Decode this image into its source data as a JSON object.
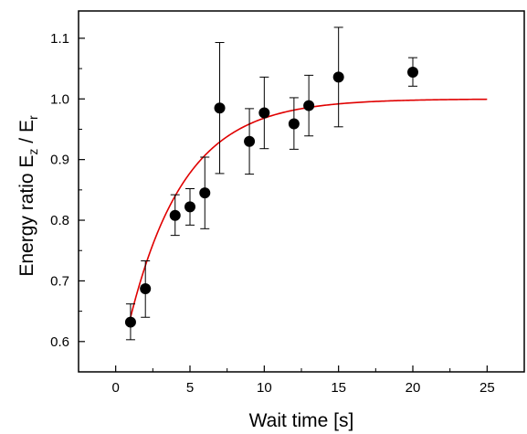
{
  "chart_data": {
    "type": "scatter",
    "xlabel": "Wait time [s]",
    "ylabel": {
      "main": "Energy ratio E",
      "sub1": "z",
      "mid": " / E",
      "sub2": "r"
    },
    "xlim": [
      -2.5,
      27.5
    ],
    "ylim": [
      0.55,
      1.145
    ],
    "xticks": [
      0,
      5,
      10,
      15,
      20,
      25
    ],
    "yticks": [
      0.6,
      0.7,
      0.8,
      0.9,
      1.0,
      1.1
    ],
    "xtick_labels": [
      "0",
      "5",
      "10",
      "15",
      "20",
      "25"
    ],
    "ytick_labels": [
      "0.6",
      "0.7",
      "0.8",
      "0.9",
      "1.0",
      "1.1"
    ],
    "grid": false,
    "points": [
      {
        "x": 1,
        "y": 0.632,
        "err_low": 0.603,
        "err_high": 0.662
      },
      {
        "x": 2,
        "y": 0.687,
        "err_low": 0.64,
        "err_high": 0.733
      },
      {
        "x": 4,
        "y": 0.808,
        "err_low": 0.775,
        "err_high": 0.842
      },
      {
        "x": 5,
        "y": 0.822,
        "err_low": 0.792,
        "err_high": 0.852
      },
      {
        "x": 6,
        "y": 0.845,
        "err_low": 0.786,
        "err_high": 0.904
      },
      {
        "x": 7,
        "y": 0.985,
        "err_low": 0.877,
        "err_high": 1.093
      },
      {
        "x": 9,
        "y": 0.93,
        "err_low": 0.876,
        "err_high": 0.984
      },
      {
        "x": 10,
        "y": 0.977,
        "err_low": 0.918,
        "err_high": 1.036
      },
      {
        "x": 12,
        "y": 0.959,
        "err_low": 0.917,
        "err_high": 1.002
      },
      {
        "x": 13,
        "y": 0.989,
        "err_low": 0.939,
        "err_high": 1.039
      },
      {
        "x": 15,
        "y": 1.036,
        "err_low": 0.954,
        "err_high": 1.118
      },
      {
        "x": 20,
        "y": 1.044,
        "err_low": 1.021,
        "err_high": 1.068
      }
    ],
    "fit": {
      "type": "exponential",
      "A": 1.0,
      "B": 0.64,
      "tau": 3.7,
      "x_start": 1,
      "x_end": 25,
      "color": "#e00000"
    },
    "marker_color": "#000000"
  }
}
